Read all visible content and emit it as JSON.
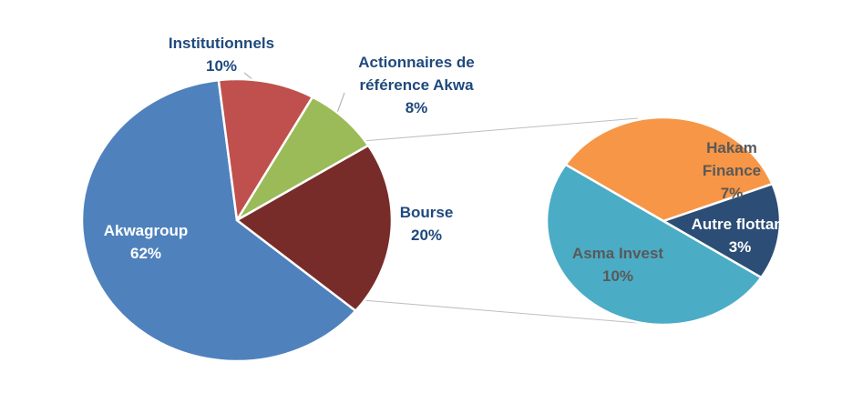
{
  "chart_data": [
    {
      "type": "pie",
      "categories": [
        "Akwagroup",
        "Institutionnels",
        "Actionnaires de référence Akwa",
        "Bourse"
      ],
      "values": [
        62,
        10,
        8,
        20
      ],
      "value_labels": [
        "62%",
        "10%",
        "8%",
        "20%"
      ],
      "colors": [
        "#4f81bd",
        "#c0504d",
        "#9bbb59",
        "#772c2a"
      ]
    },
    {
      "type": "pie",
      "categories": [
        "Hakam Finance",
        "Autre flottant",
        "Asma Invest"
      ],
      "values": [
        7,
        3,
        10
      ],
      "value_labels": [
        "7%",
        "3%",
        "10%"
      ],
      "colors": [
        "#f79646",
        "#2c4d75",
        "#4bacc6"
      ]
    }
  ]
}
